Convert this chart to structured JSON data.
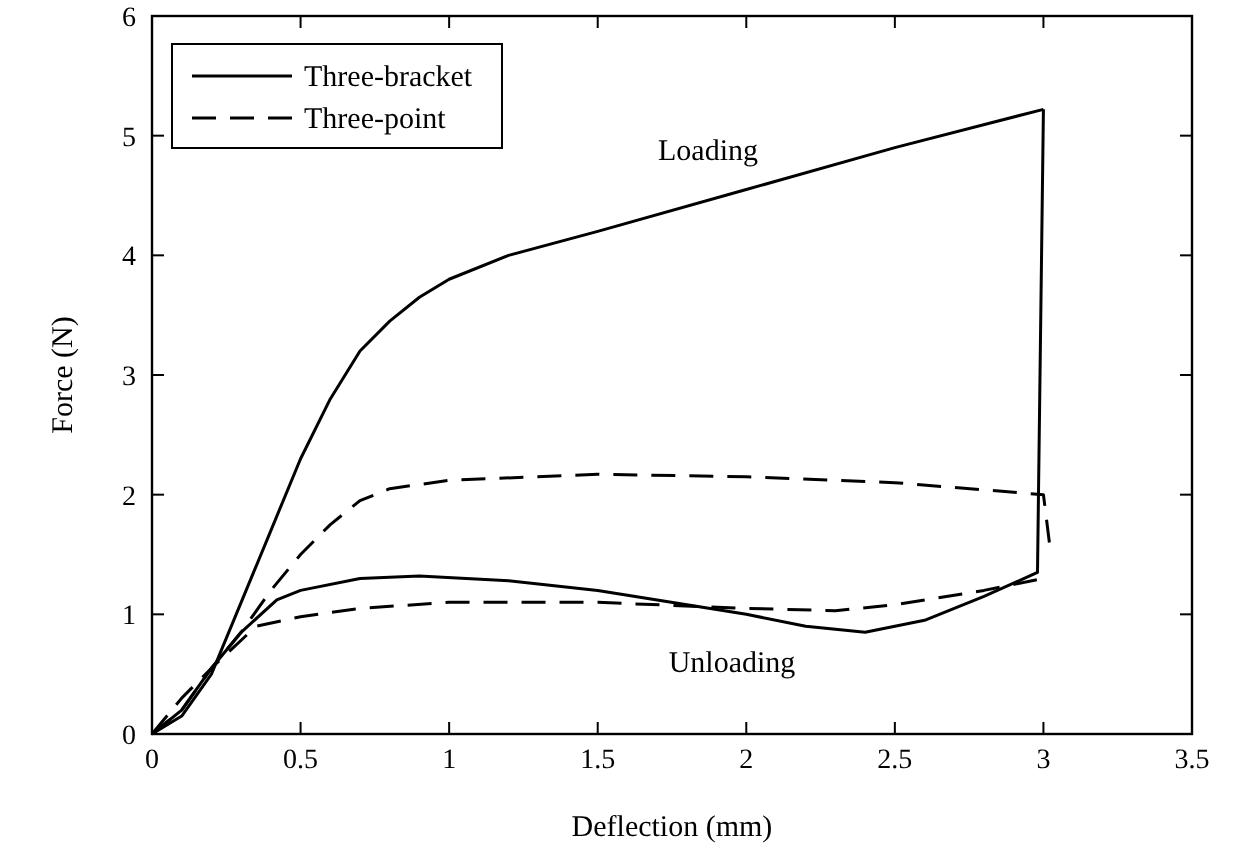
{
  "chart_data": {
    "type": "line",
    "xlabel": "Deflection (mm)",
    "ylabel": "Force (N)",
    "xlim": [
      0,
      3.5
    ],
    "xticks": [
      0,
      0.5,
      1,
      1.5,
      2,
      2.5,
      3,
      3.5
    ],
    "ylim": [
      0,
      6
    ],
    "yticks": [
      0,
      1,
      2,
      3,
      4,
      5,
      6
    ],
    "grid": false,
    "legend": "top left",
    "marker": "none",
    "series": [
      {
        "name": "Three-bracket",
        "color": "#000000",
        "line_style": "solid",
        "x": [
          0,
          0.1,
          0.2,
          0.3,
          0.4,
          0.5,
          0.6,
          0.7,
          0.8,
          0.9,
          1.0,
          1.2,
          1.5,
          2.0,
          2.5,
          3.0
        ],
        "values": [
          0,
          0.15,
          0.5,
          1.1,
          1.7,
          2.3,
          2.8,
          3.2,
          3.45,
          3.65,
          3.8,
          4.0,
          4.2,
          4.55,
          4.9,
          5.22
        ]
      },
      {
        "color": "#000000",
        "line_style": "solid",
        "x": [
          0,
          0.1,
          0.2,
          0.3,
          0.42,
          0.5,
          0.7,
          0.9,
          1.2,
          1.5,
          2.0,
          2.2,
          2.4,
          2.6,
          2.8,
          2.98,
          3.0
        ],
        "values": [
          0,
          0.2,
          0.55,
          0.85,
          1.12,
          1.2,
          1.3,
          1.32,
          1.28,
          1.2,
          1.0,
          0.9,
          0.85,
          0.95,
          1.15,
          1.35,
          5.22
        ]
      },
      {
        "name": "Three-point",
        "color": "#000000",
        "line_style": "dashed",
        "x": [
          0,
          0.1,
          0.2,
          0.3,
          0.4,
          0.5,
          0.6,
          0.7,
          0.8,
          1.0,
          1.5,
          2.0,
          2.5,
          3.0,
          3.02
        ],
        "values": [
          0,
          0.3,
          0.55,
          0.85,
          1.2,
          1.5,
          1.75,
          1.95,
          2.05,
          2.12,
          2.17,
          2.15,
          2.1,
          2.0,
          1.6
        ]
      },
      {
        "color": "#000000",
        "line_style": "dashed",
        "x": [
          0,
          0.1,
          0.2,
          0.35,
          0.5,
          0.7,
          1.0,
          1.5,
          2.0,
          2.3,
          2.5,
          2.8,
          3.0
        ],
        "values": [
          0,
          0.2,
          0.55,
          0.9,
          0.98,
          1.05,
          1.1,
          1.1,
          1.05,
          1.03,
          1.08,
          1.2,
          1.3
        ]
      }
    ],
    "annotations": [
      "Loading",
      "Unloading"
    ]
  }
}
